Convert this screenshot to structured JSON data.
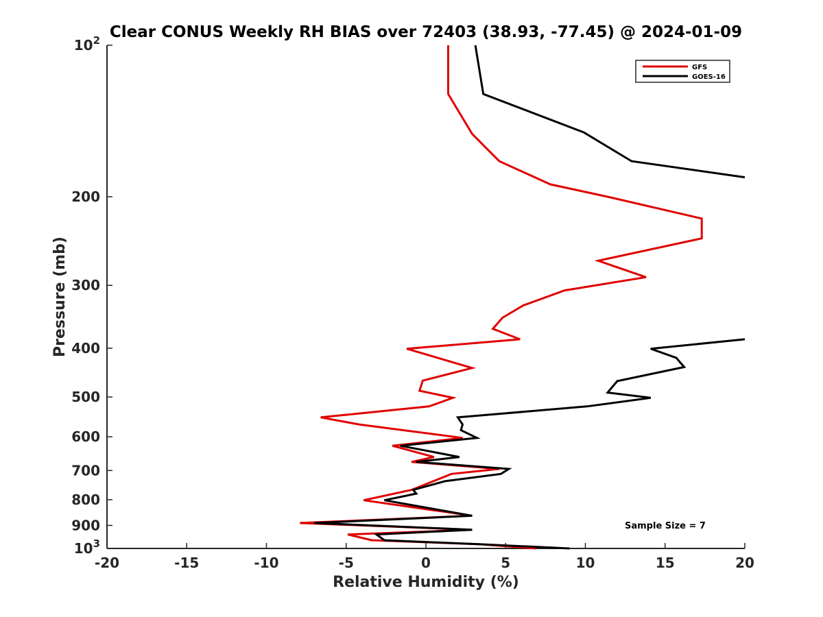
{
  "chart_data": {
    "type": "line",
    "title": "Clear CONUS Weekly RH BIAS over 72403 (38.93, -77.45) @ 2024-01-09",
    "xlabel": "Relative Humidity (%)",
    "ylabel": "Pressure (mb)",
    "xlim": [
      -20,
      20
    ],
    "ylim": [
      100,
      1000
    ],
    "y_scale": "log",
    "y_reversed": true,
    "x_ticks": [
      -20,
      -15,
      -10,
      -5,
      0,
      5,
      10,
      15,
      20
    ],
    "x_tick_labels": [
      "-20",
      "-15",
      "-10",
      "-5",
      "0",
      "5",
      "10",
      "15",
      "20"
    ],
    "y_ticks": [
      100,
      200,
      300,
      400,
      500,
      600,
      700,
      800,
      900,
      1000
    ],
    "y_tick_labels": [
      {
        "base": "10",
        "exp": "2"
      },
      {
        "base": "200"
      },
      {
        "base": "300"
      },
      {
        "base": "400"
      },
      {
        "base": "500"
      },
      {
        "base": "600"
      },
      {
        "base": "700"
      },
      {
        "base": "800"
      },
      {
        "base": "900"
      },
      {
        "base": "10",
        "exp": "3"
      }
    ],
    "grid": false,
    "legend_position": "top-right",
    "annotation": "Sample Size = 7",
    "series": [
      {
        "name": "GFS",
        "color": "#e00000",
        "points": [
          [
            1.4,
            100
          ],
          [
            1.4,
            125
          ],
          [
            2.9,
            150
          ],
          [
            4.6,
            170
          ],
          [
            7.8,
            189
          ],
          [
            11.4,
            200
          ],
          [
            17.3,
            221
          ],
          [
            17.3,
            242
          ],
          [
            10.8,
            268
          ],
          [
            13.8,
            289
          ],
          [
            8.7,
            307
          ],
          [
            6.1,
            329
          ],
          [
            4.8,
            348
          ],
          [
            4.2,
            366
          ],
          [
            5.9,
            384
          ],
          [
            -1.2,
            401
          ],
          [
            2.9,
            438
          ],
          [
            -0.2,
            464
          ],
          [
            -0.4,
            486
          ],
          [
            1.7,
            502
          ],
          [
            0.2,
            522
          ],
          [
            -6.6,
            549
          ],
          [
            -4.2,
            567
          ],
          [
            2.3,
            603
          ],
          [
            -2.1,
            625
          ],
          [
            0.5,
            658
          ],
          [
            -0.9,
            673
          ],
          [
            4.6,
            695
          ],
          [
            1.6,
            711
          ],
          [
            -0.9,
            765
          ],
          [
            -3.9,
            802
          ],
          [
            2.9,
            861
          ],
          [
            -7.9,
            890
          ],
          [
            2.9,
            918
          ],
          [
            -4.9,
            938
          ],
          [
            -3.4,
            963
          ],
          [
            3.4,
            981
          ],
          [
            6.9,
            1000
          ]
        ]
      },
      {
        "name": "GOES-16",
        "color": "#000000",
        "points": [
          [
            3.1,
            100
          ],
          [
            3.6,
            125
          ],
          [
            9.9,
            149
          ],
          [
            12.9,
            170
          ],
          [
            20,
            183
          ],
          [
            null,
            null
          ],
          [
            20,
            384
          ],
          [
            14.1,
            401
          ],
          [
            15.7,
            418
          ],
          [
            16.2,
            436
          ],
          [
            12.0,
            465
          ],
          [
            11.4,
            490
          ],
          [
            14.1,
            502
          ],
          [
            10.1,
            522
          ],
          [
            2.0,
            549
          ],
          [
            2.3,
            567
          ],
          [
            2.2,
            582
          ],
          [
            3.2,
            603
          ],
          [
            -1.6,
            625
          ],
          [
            2.1,
            658
          ],
          [
            -0.6,
            673
          ],
          [
            5.2,
            695
          ],
          [
            4.7,
            711
          ],
          [
            1.2,
            735
          ],
          [
            -0.8,
            765
          ],
          [
            -0.6,
            778
          ],
          [
            -2.6,
            802
          ],
          [
            2.9,
            861
          ],
          [
            -7.0,
            890
          ],
          [
            2.9,
            918
          ],
          [
            -3.1,
            938
          ],
          [
            -2.6,
            963
          ],
          [
            3.4,
            981
          ],
          [
            9.0,
            1000
          ]
        ]
      }
    ]
  }
}
